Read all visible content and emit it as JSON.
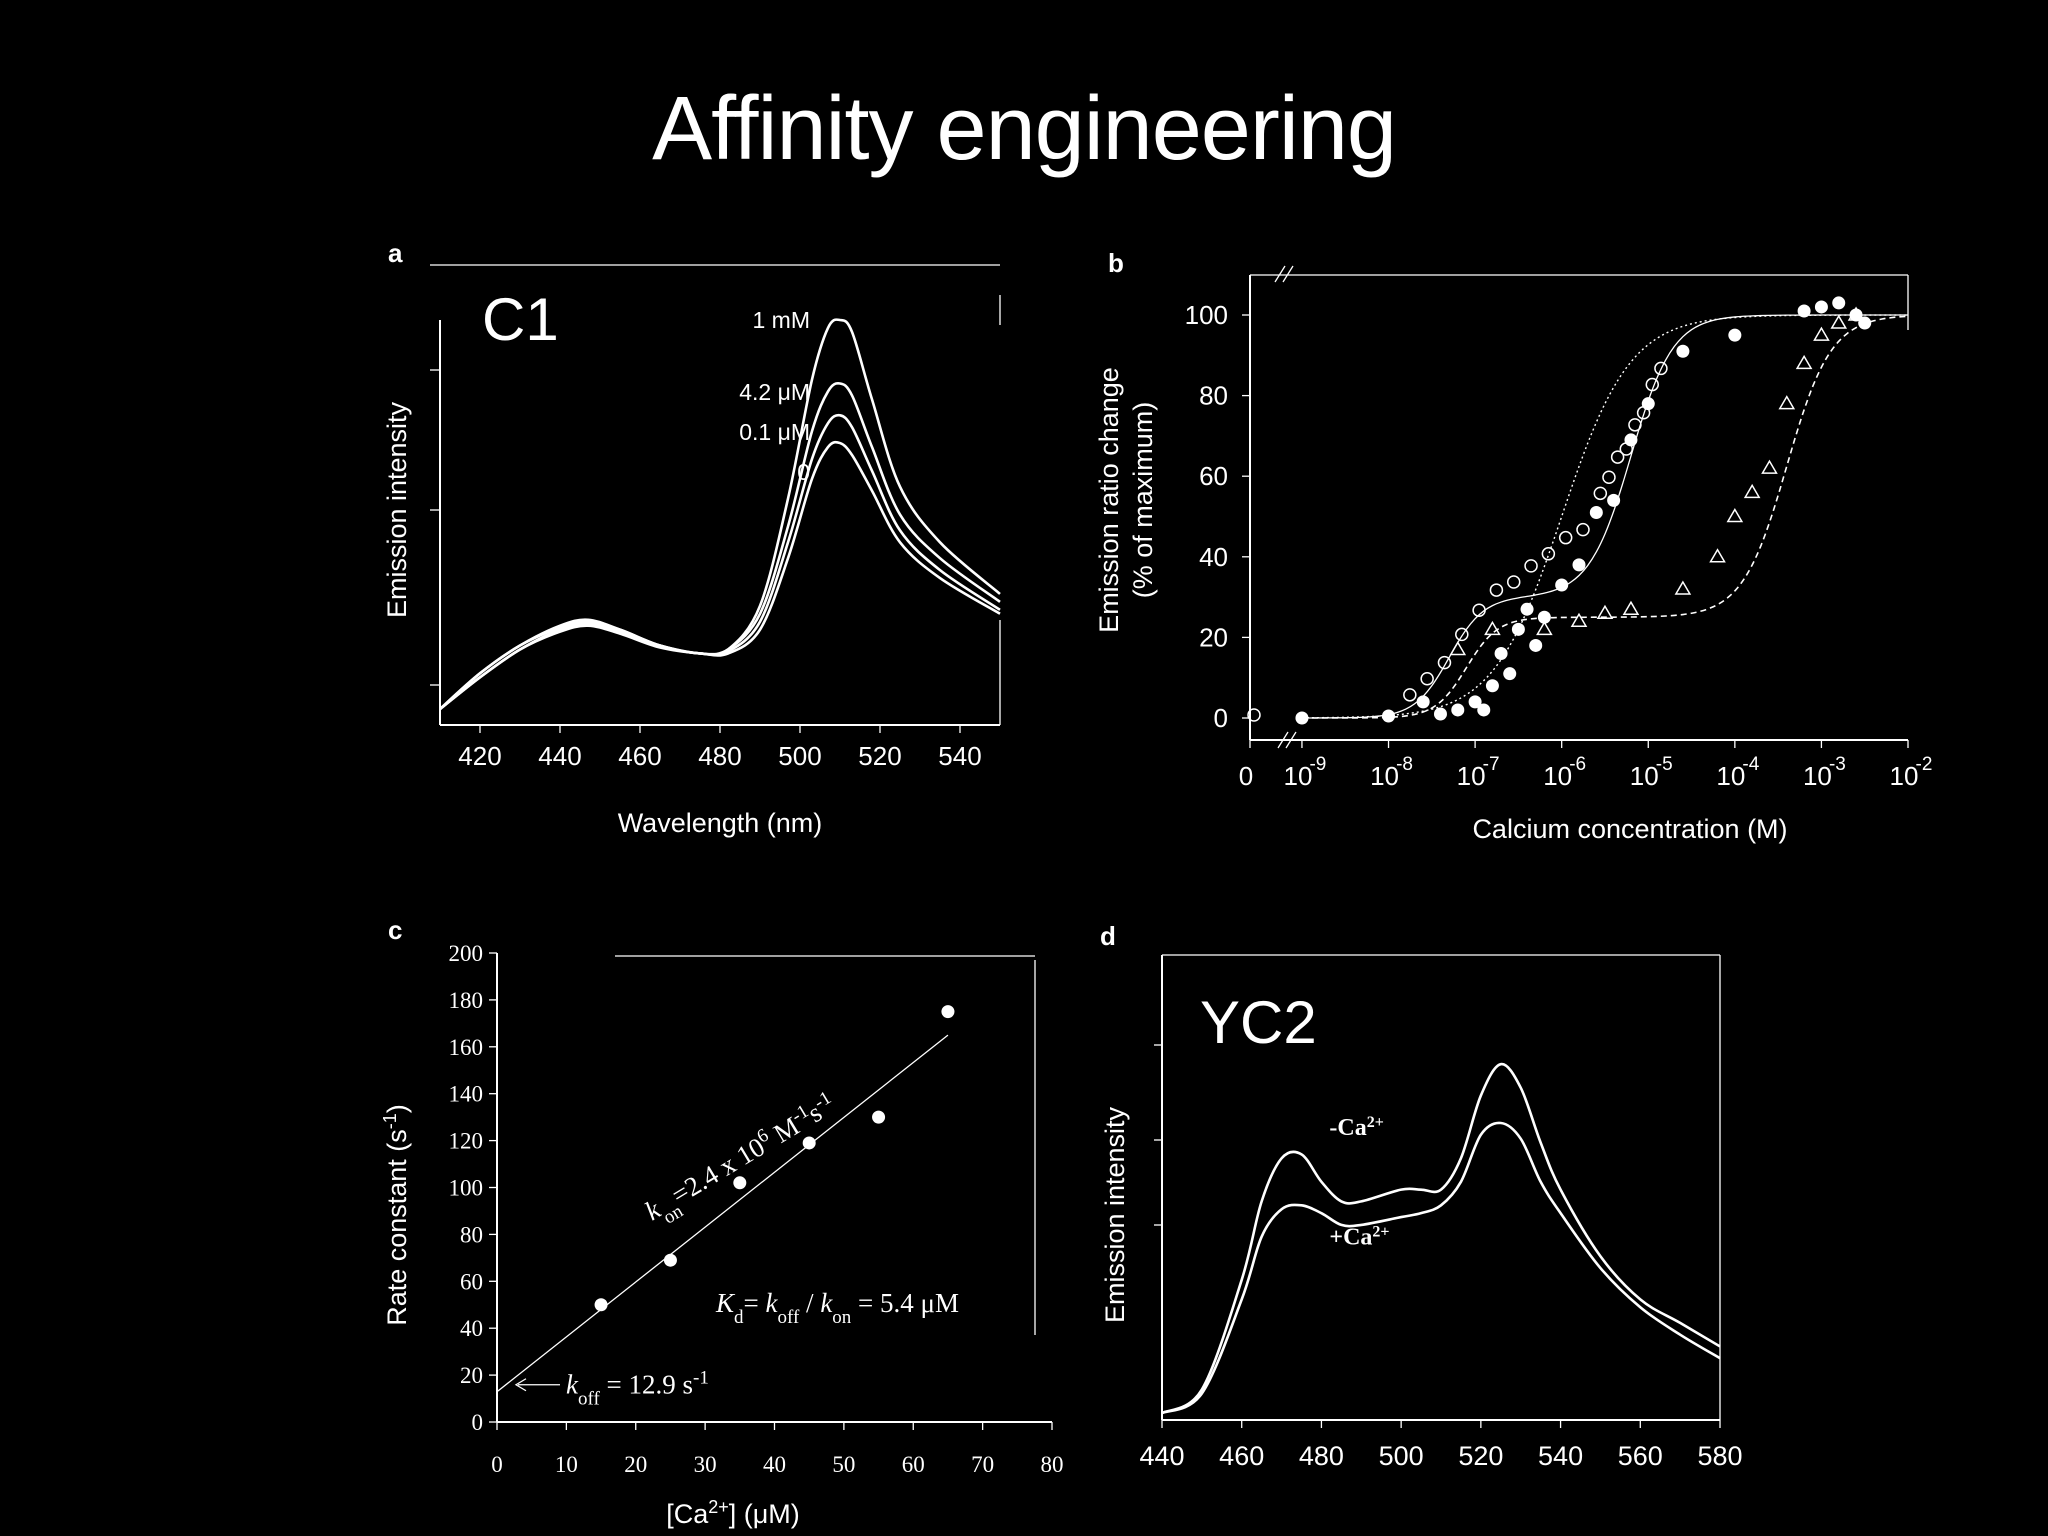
{
  "slide": {
    "title": "Affinity engineering"
  },
  "chart_data": [
    {
      "panel": "a",
      "type": "line",
      "inset_label": "C1",
      "xlabel": "Wavelength (nm)",
      "ylabel": "Emission intensity",
      "xlim": [
        410,
        550
      ],
      "ylim": [
        0,
        1
      ],
      "xticks": [
        420,
        440,
        460,
        480,
        500,
        520,
        540
      ],
      "x": [
        410,
        420,
        430,
        440,
        447,
        455,
        465,
        475,
        482,
        490,
        497,
        503,
        507,
        510,
        513,
        518,
        525,
        535,
        550
      ],
      "series": [
        {
          "name": "1 mM",
          "values": [
            0.02,
            0.11,
            0.18,
            0.23,
            0.245,
            0.22,
            0.18,
            0.16,
            0.17,
            0.28,
            0.55,
            0.85,
            0.98,
            1.0,
            0.97,
            0.8,
            0.58,
            0.44,
            0.31
          ]
        },
        {
          "name": "4.2 μM",
          "values": [
            0.02,
            0.11,
            0.18,
            0.225,
            0.24,
            0.22,
            0.18,
            0.16,
            0.17,
            0.26,
            0.48,
            0.72,
            0.82,
            0.84,
            0.81,
            0.68,
            0.51,
            0.4,
            0.29
          ]
        },
        {
          "name": "0.1 μM",
          "values": [
            0.02,
            0.1,
            0.17,
            0.22,
            0.235,
            0.215,
            0.18,
            0.16,
            0.165,
            0.24,
            0.44,
            0.65,
            0.74,
            0.76,
            0.73,
            0.62,
            0.47,
            0.37,
            0.27
          ]
        },
        {
          "name": "0",
          "values": [
            0.02,
            0.1,
            0.17,
            0.215,
            0.23,
            0.21,
            0.175,
            0.16,
            0.16,
            0.22,
            0.4,
            0.6,
            0.68,
            0.69,
            0.66,
            0.57,
            0.44,
            0.35,
            0.26
          ]
        }
      ]
    },
    {
      "panel": "b",
      "type": "scatter",
      "xlabel": "Calcium concentration (M)",
      "ylabel": "Emission ratio change",
      "ylabel2": "(% of maximum)",
      "xscale": "log",
      "xlim": [
        -9.6,
        -2
      ],
      "ylim": [
        -5,
        110
      ],
      "yticks": [
        0,
        20,
        40,
        60,
        80,
        100
      ],
      "xtick_labels": [
        "0",
        "10",
        "10",
        "10",
        "10",
        "10",
        "10",
        "10",
        "10"
      ],
      "xtick_exponents": [
        "",
        "-9",
        "-8",
        "-7",
        "-6",
        "-5",
        "-4",
        "-3",
        "-2"
      ],
      "series": [
        {
          "name": "",
          "marker": "filled-circle",
          "x": [
            -9,
            -8,
            -7.6,
            -7.4,
            -7.2,
            -7,
            -6.9,
            -6.8,
            -6.7,
            -6.6,
            -6.5,
            -6.4,
            -6.3,
            -6.2,
            -6,
            -5.8,
            -5.6,
            -5.4,
            -5.2,
            -5,
            -4.6,
            -4,
            -3.2,
            -3,
            -2.8,
            -2.6,
            -2.5
          ],
          "y": [
            0,
            0.5,
            4,
            1,
            2,
            4,
            2,
            8,
            16,
            11,
            22,
            27,
            18,
            25,
            33,
            38,
            51,
            54,
            69,
            78,
            91,
            95,
            101,
            102,
            103,
            100,
            98
          ]
        },
        {
          "name": "",
          "marker": "open-circle",
          "x": [
            -9.6,
            -7.8,
            -7.6,
            -7.4,
            -7.2,
            -7,
            -6.8,
            -6.6,
            -6.4,
            -6.2,
            -6,
            -5.8,
            -5.6,
            -5.5,
            -5.4,
            -5.3,
            -5.2,
            -5.1,
            -5,
            -4.9
          ],
          "y": [
            0,
            5,
            9,
            13,
            20,
            26,
            31,
            33,
            37,
            40,
            44,
            46,
            55,
            59,
            64,
            66,
            72,
            75,
            82,
            86
          ]
        },
        {
          "name": "",
          "marker": "open-triangle",
          "x": [
            -7.2,
            -6.8,
            -6.2,
            -5.8,
            -5.5,
            -5.2,
            -4.6,
            -4.2,
            -4,
            -3.8,
            -3.6,
            -3.4,
            -3.2,
            -3,
            -2.8,
            -2.6
          ],
          "y": [
            17,
            22,
            22,
            24,
            26,
            27,
            32,
            40,
            50,
            56,
            62,
            78,
            88,
            95,
            98,
            100
          ]
        }
      ]
    },
    {
      "panel": "c",
      "type": "scatter",
      "xlabel": "[Ca2+] (μM)",
      "ylabel": "Rate constant (s-1)",
      "xlim": [
        0,
        80
      ],
      "ylim": [
        0,
        200
      ],
      "xticks": [
        0,
        10,
        20,
        30,
        40,
        50,
        60,
        70,
        80
      ],
      "yticks": [
        0,
        20,
        40,
        60,
        80,
        100,
        120,
        140,
        160,
        180,
        200
      ],
      "x": [
        15,
        25,
        35,
        45,
        55,
        65
      ],
      "y": [
        50,
        69,
        102,
        119,
        130,
        175
      ],
      "fit_line": {
        "x": [
          0,
          65
        ],
        "y": [
          12.9,
          165
        ]
      },
      "annotations": {
        "kon": "kon=2.4 x 10⁶ M⁻¹s⁻¹",
        "kd": "Kd= koff / kon = 5.4 μM",
        "koff": "koff = 12.9 s⁻¹"
      }
    },
    {
      "panel": "d",
      "type": "line",
      "inset_label": "YC2",
      "xlabel": "",
      "ylabel": "Emission intensity",
      "xlim": [
        440,
        580
      ],
      "ylim": [
        0,
        1
      ],
      "xticks": [
        440,
        460,
        480,
        500,
        520,
        540,
        560,
        580
      ],
      "x": [
        440,
        450,
        460,
        465,
        470,
        475,
        480,
        485,
        490,
        500,
        505,
        510,
        515,
        520,
        525,
        530,
        535,
        540,
        550,
        560,
        570,
        580
      ],
      "series": [
        {
          "name": "-Ca2+",
          "label": "-Ca",
          "label_sup": "2+",
          "values": [
            0.01,
            0.07,
            0.35,
            0.55,
            0.66,
            0.67,
            0.6,
            0.55,
            0.55,
            0.58,
            0.58,
            0.58,
            0.66,
            0.82,
            0.9,
            0.84,
            0.7,
            0.58,
            0.41,
            0.3,
            0.24,
            0.18
          ]
        },
        {
          "name": "+Ca2+",
          "label": "+Ca",
          "label_sup": "2+",
          "values": [
            0.01,
            0.06,
            0.3,
            0.46,
            0.53,
            0.54,
            0.52,
            0.49,
            0.49,
            0.51,
            0.52,
            0.54,
            0.6,
            0.72,
            0.75,
            0.71,
            0.6,
            0.52,
            0.38,
            0.28,
            0.21,
            0.15
          ]
        }
      ]
    }
  ]
}
